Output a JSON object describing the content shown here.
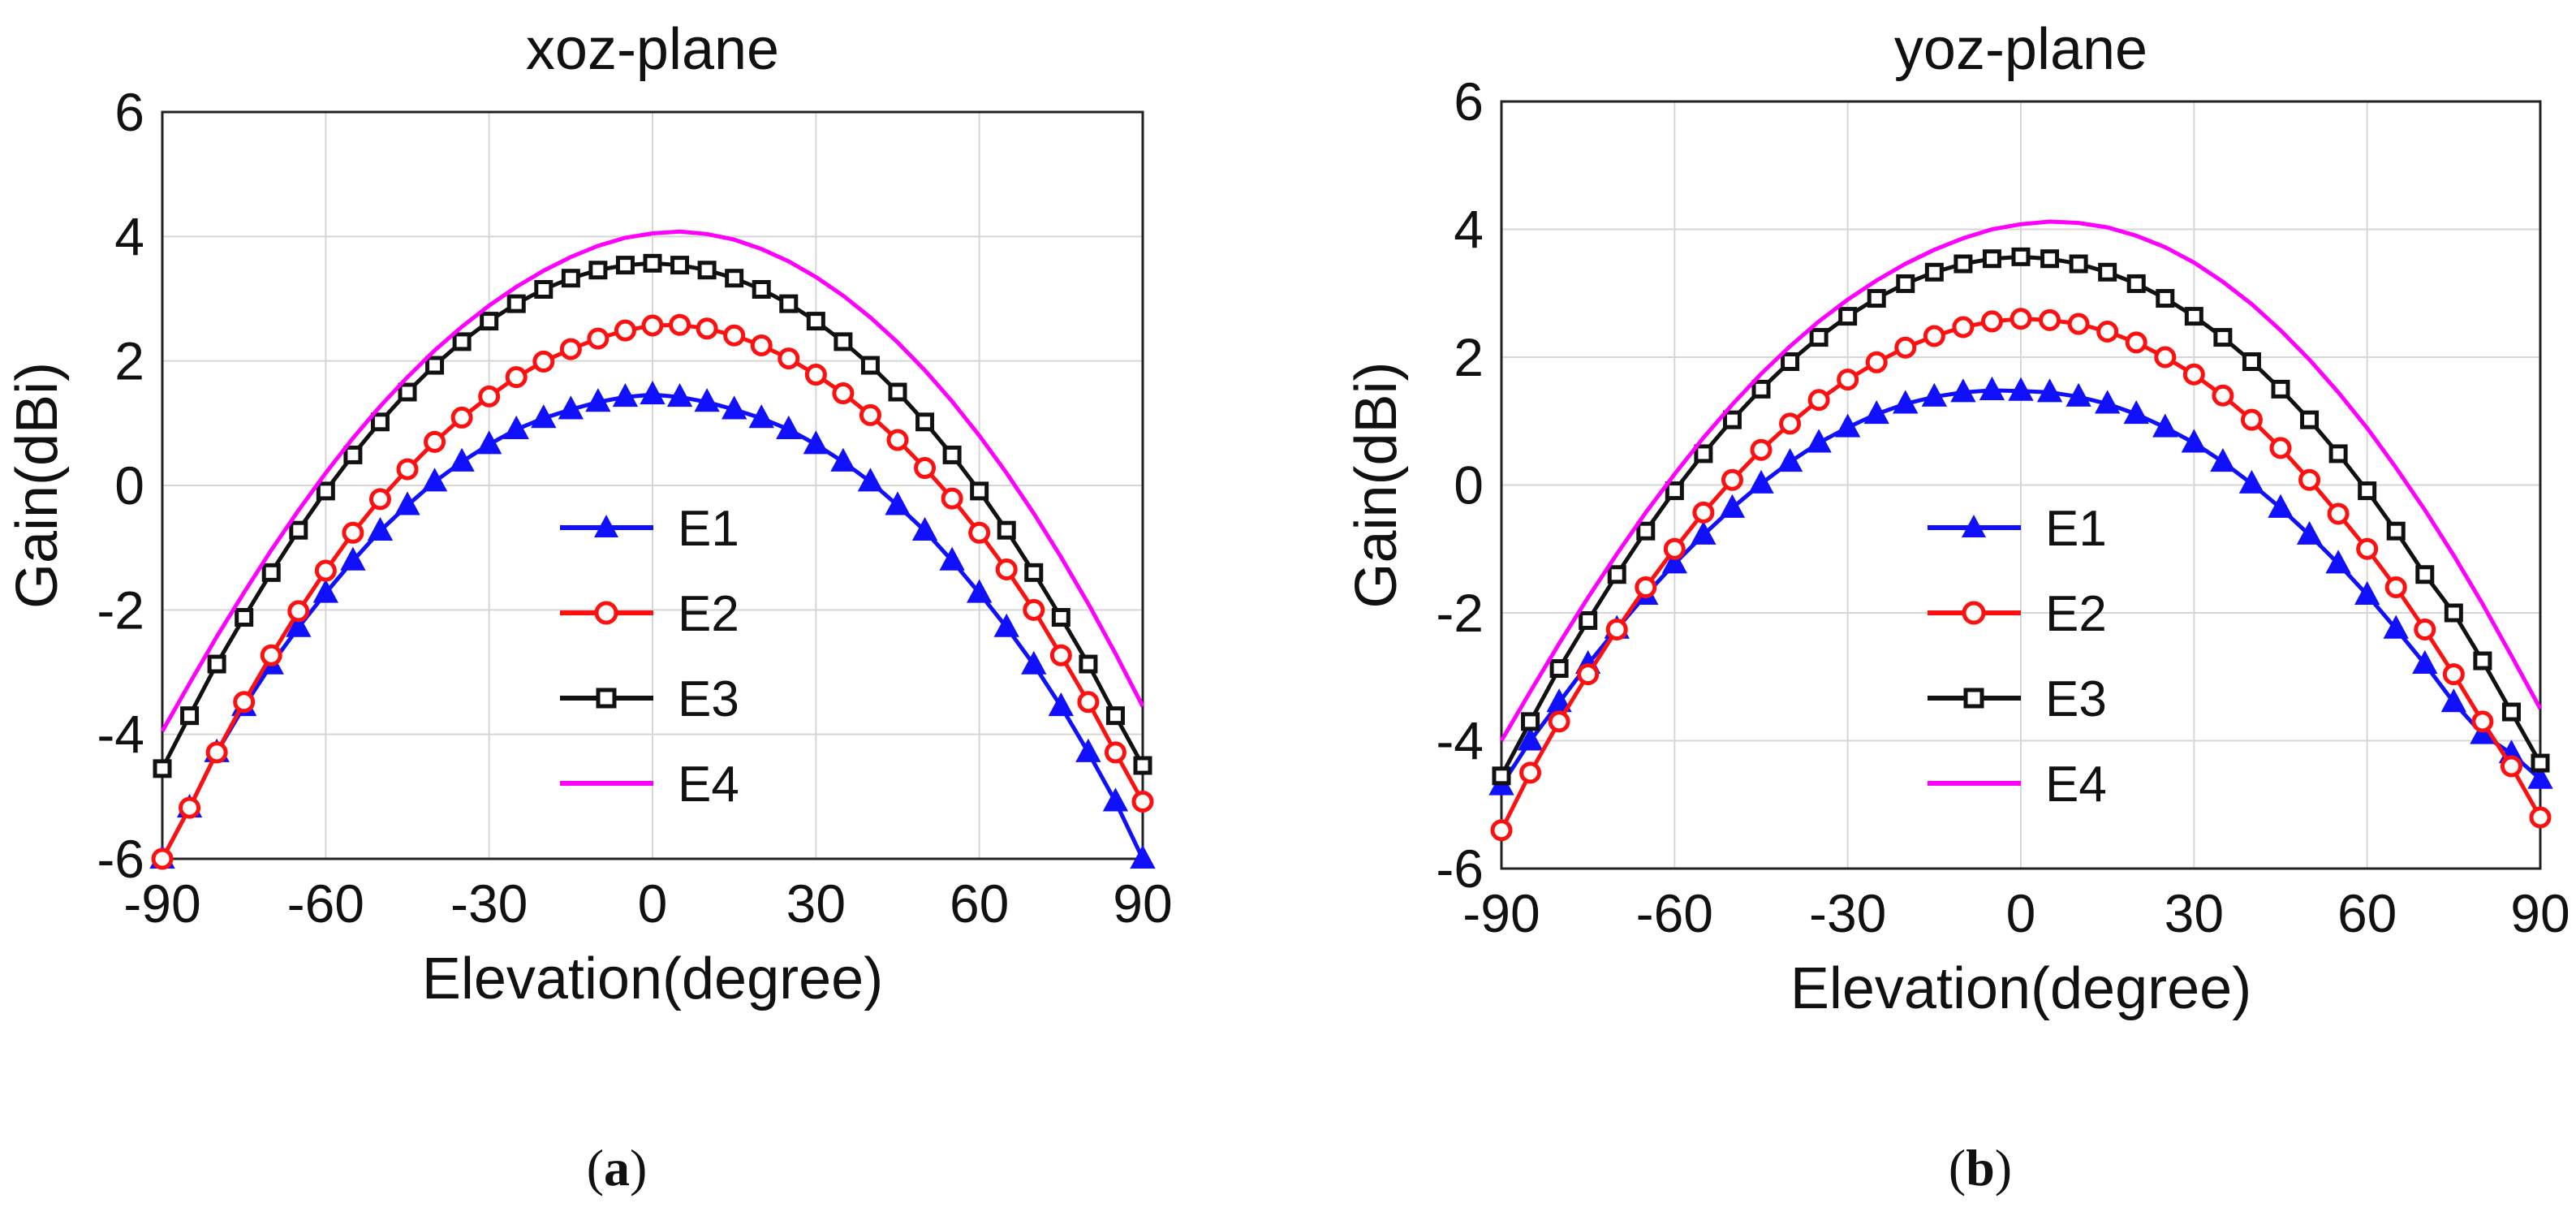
{
  "chart_data": [
    {
      "type": "line",
      "title": "xoz-plane",
      "caption": "a",
      "xlabel": "Elevation(degree)",
      "ylabel": "Gain(dBi)",
      "xlim": [
        -90,
        90
      ],
      "ylim": [
        -6,
        6
      ],
      "xticks": [
        "-90",
        "-60",
        "-30",
        "0",
        "30",
        "60",
        "90"
      ],
      "yticks": [
        "6",
        "4",
        "2",
        "0",
        "-2",
        "-4",
        "-6"
      ],
      "grid": true,
      "legend": "center",
      "x": [
        -90,
        -85,
        -80,
        -75,
        -70,
        -65,
        -60,
        -55,
        -50,
        -45,
        -40,
        -35,
        -30,
        -25,
        -20,
        -15,
        -10,
        -5,
        0,
        5,
        10,
        15,
        20,
        25,
        30,
        35,
        40,
        45,
        50,
        55,
        60,
        65,
        70,
        75,
        80,
        85,
        90
      ],
      "series": [
        {
          "name": "E1",
          "color": "#1010ff",
          "marker": "triangle",
          "values": [
            -6.0,
            -5.18,
            -4.29,
            -3.55,
            -2.88,
            -2.28,
            -1.73,
            -1.21,
            -0.73,
            -0.32,
            0.06,
            0.38,
            0.66,
            0.9,
            1.08,
            1.22,
            1.34,
            1.42,
            1.46,
            1.42,
            1.34,
            1.22,
            1.08,
            0.9,
            0.66,
            0.38,
            0.06,
            -0.32,
            -0.73,
            -1.21,
            -1.73,
            -2.28,
            -2.88,
            -3.55,
            -4.29,
            -5.08,
            -6.0
          ]
        },
        {
          "name": "E2",
          "color": "#ff1010",
          "marker": "circle",
          "values": [
            -6.0,
            -5.18,
            -4.29,
            -3.48,
            -2.73,
            -2.02,
            -1.37,
            -0.76,
            -0.22,
            0.26,
            0.7,
            1.09,
            1.43,
            1.74,
            1.99,
            2.19,
            2.36,
            2.49,
            2.57,
            2.58,
            2.52,
            2.41,
            2.25,
            2.04,
            1.78,
            1.48,
            1.13,
            0.73,
            0.28,
            -0.21,
            -0.76,
            -1.35,
            -2.0,
            -2.73,
            -3.48,
            -4.29,
            -5.08
          ]
        },
        {
          "name": "E3",
          "color": "#111111",
          "marker": "square",
          "values": [
            -4.55,
            -3.7,
            -2.87,
            -2.12,
            -1.4,
            -0.72,
            -0.09,
            0.49,
            1.02,
            1.5,
            1.93,
            2.31,
            2.64,
            2.92,
            3.15,
            3.33,
            3.46,
            3.54,
            3.57,
            3.54,
            3.46,
            3.33,
            3.15,
            2.92,
            2.64,
            2.31,
            1.93,
            1.5,
            1.02,
            0.49,
            -0.09,
            -0.72,
            -1.4,
            -2.12,
            -2.87,
            -3.7,
            -4.5
          ]
        },
        {
          "name": "E4",
          "color": "#ff00ff",
          "marker": "none",
          "values": [
            -3.95,
            -3.18,
            -2.43,
            -1.72,
            -1.04,
            -0.4,
            0.2,
            0.76,
            1.27,
            1.74,
            2.17,
            2.55,
            2.89,
            3.19,
            3.45,
            3.67,
            3.85,
            3.98,
            4.05,
            4.08,
            4.04,
            3.95,
            3.8,
            3.6,
            3.35,
            3.05,
            2.7,
            2.3,
            1.85,
            1.35,
            0.8,
            0.2,
            -0.45,
            -1.15,
            -1.9,
            -2.7,
            -3.55
          ]
        }
      ]
    },
    {
      "type": "line",
      "title": "yoz-plane",
      "caption": "b",
      "xlabel": "Elevation(degree)",
      "ylabel": "Gain(dBi)",
      "xlim": [
        -90,
        90
      ],
      "ylim": [
        -6,
        6
      ],
      "xticks": [
        "-90",
        "-60",
        "-30",
        "0",
        "30",
        "60",
        "90"
      ],
      "yticks": [
        "6",
        "4",
        "2",
        "0",
        "-2",
        "-4",
        "-6"
      ],
      "grid": true,
      "legend": "center",
      "x": [
        -90,
        -85,
        -80,
        -75,
        -70,
        -65,
        -60,
        -55,
        -50,
        -45,
        -40,
        -35,
        -30,
        -25,
        -20,
        -15,
        -10,
        -5,
        0,
        5,
        10,
        15,
        20,
        25,
        30,
        35,
        40,
        45,
        50,
        55,
        60,
        65,
        70,
        75,
        80,
        85,
        90
      ],
      "series": [
        {
          "name": "E1",
          "color": "#1010ff",
          "marker": "triangle",
          "values": [
            -4.7,
            -4.0,
            -3.4,
            -2.8,
            -2.25,
            -1.72,
            -1.23,
            -0.78,
            -0.36,
            0.02,
            0.36,
            0.66,
            0.9,
            1.11,
            1.27,
            1.38,
            1.45,
            1.48,
            1.47,
            1.45,
            1.38,
            1.27,
            1.11,
            0.9,
            0.66,
            0.36,
            0.02,
            -0.36,
            -0.78,
            -1.23,
            -1.72,
            -2.25,
            -2.8,
            -3.4,
            -3.9,
            -4.2,
            -4.6
          ]
        },
        {
          "name": "E2",
          "color": "#ff1010",
          "marker": "circle",
          "values": [
            -5.4,
            -4.5,
            -3.7,
            -2.96,
            -2.26,
            -1.6,
            -1.0,
            -0.43,
            0.08,
            0.55,
            0.96,
            1.33,
            1.65,
            1.92,
            2.15,
            2.33,
            2.47,
            2.56,
            2.6,
            2.58,
            2.52,
            2.4,
            2.23,
            2.0,
            1.73,
            1.4,
            1.02,
            0.58,
            0.08,
            -0.45,
            -1.0,
            -1.6,
            -2.26,
            -2.96,
            -3.7,
            -4.4,
            -5.2
          ]
        },
        {
          "name": "E3",
          "color": "#111111",
          "marker": "square",
          "values": [
            -4.55,
            -3.7,
            -2.87,
            -2.12,
            -1.4,
            -0.72,
            -0.09,
            0.49,
            1.02,
            1.5,
            1.93,
            2.31,
            2.64,
            2.92,
            3.15,
            3.33,
            3.46,
            3.54,
            3.57,
            3.54,
            3.46,
            3.33,
            3.15,
            2.92,
            2.64,
            2.31,
            1.93,
            1.5,
            1.02,
            0.49,
            -0.09,
            -0.72,
            -1.4,
            -2.0,
            -2.75,
            -3.55,
            -4.35
          ]
        },
        {
          "name": "E4",
          "color": "#ff00ff",
          "marker": "none",
          "values": [
            -4.0,
            -3.23,
            -2.48,
            -1.76,
            -1.08,
            -0.43,
            0.17,
            0.74,
            1.26,
            1.74,
            2.17,
            2.56,
            2.9,
            3.2,
            3.46,
            3.68,
            3.86,
            4.0,
            4.08,
            4.12,
            4.1,
            4.03,
            3.9,
            3.72,
            3.48,
            3.18,
            2.83,
            2.42,
            1.96,
            1.45,
            0.89,
            0.27,
            -0.39,
            -1.1,
            -1.86,
            -2.67,
            -3.5
          ]
        }
      ]
    }
  ]
}
